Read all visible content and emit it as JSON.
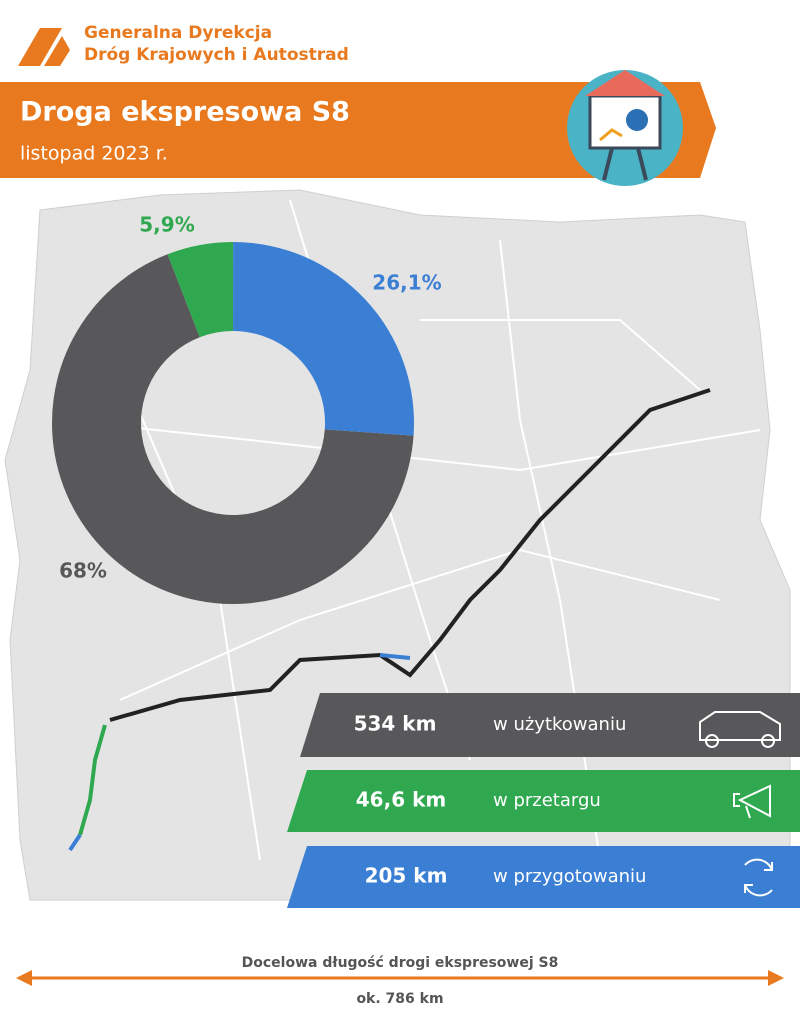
{
  "header": {
    "org_line1": "Generalna Dyrekcja",
    "org_line2": "Dróg Krajowych i Autostrad",
    "title": "Droga ekspresowa S8",
    "subtitle": "listopad 2023 r."
  },
  "chart_data": {
    "type": "pie",
    "categories": [
      "w użytkowaniu",
      "w przetargu",
      "w przygotowaniu"
    ],
    "values": [
      68,
      5.9,
      26.1
    ],
    "value_labels": [
      "68%",
      "5,9%",
      "26,1%"
    ],
    "colors": [
      "#58585a",
      "#2fa84f",
      "#3b7fd4"
    ]
  },
  "amounts": [
    "534 km",
    "46,6 km",
    "205 km"
  ],
  "footer": {
    "caption": "Docelowa długość drogi ekspresowej S8",
    "total": "ok. 786 km"
  }
}
